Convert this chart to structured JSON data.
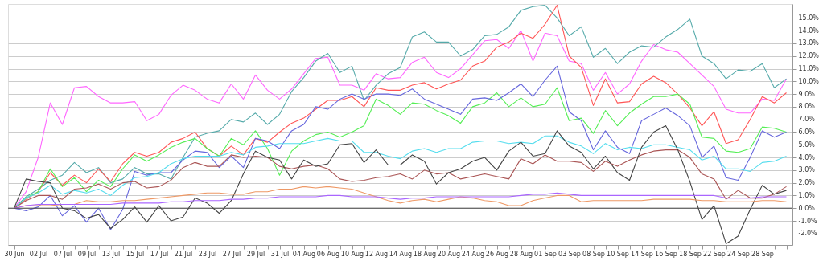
{
  "chart_data": {
    "type": "line",
    "categories": [
      "30 Jun",
      null,
      "02 Jul",
      null,
      "07 Jul",
      null,
      "09 Jul",
      null,
      "13 Jul",
      null,
      "15 Jul",
      null,
      "17 Jul",
      null,
      "21 Jul",
      null,
      "23 Jul",
      null,
      "27 Jul",
      null,
      "29 Jul",
      null,
      "31 Jul",
      null,
      "04 Aug",
      null,
      "06 Aug",
      null,
      "10 Aug",
      null,
      "12 Aug",
      null,
      "14 Aug",
      null,
      "18 Aug",
      null,
      "20 Aug",
      null,
      "24 Aug",
      null,
      "26 Aug",
      null,
      "28 Aug",
      null,
      "01 Sep",
      null,
      "03 Sep",
      null,
      "08 Sep",
      null,
      "10 Sep",
      null,
      "14 Sep",
      null,
      "16 Sep",
      null,
      "18 Sep",
      null,
      "22 Sep",
      null,
      "24 Sep",
      null,
      "28 Sep",
      null,
      null
    ],
    "series": [
      {
        "color": "#ff66ff",
        "values": [
          0,
          1.3,
          4.0,
          8.3,
          6.6,
          9.5,
          9.6,
          8.8,
          8.3,
          8.3,
          8.4,
          6.9,
          7.4,
          8.9,
          9.7,
          9.3,
          8.6,
          8.3,
          9.8,
          8.6,
          10.5,
          9.3,
          8.6,
          9.4,
          10.6,
          11.8,
          11.9,
          9.7,
          9.7,
          9.3,
          10.6,
          10.2,
          10.3,
          11.5,
          11.9,
          10.7,
          10.3,
          11.0,
          12.1,
          13.2,
          13.3,
          12.6,
          14.0,
          11.6,
          13.8,
          13.6,
          11.6,
          11.4,
          9.3,
          10.7,
          9.0,
          9.8,
          11.6,
          12.9,
          12.5,
          12.3,
          11.4,
          10.5,
          9.6,
          7.8,
          7.5,
          7.5,
          8.6,
          8.5,
          10.2
        ]
      },
      {
        "color": "#55aaaa",
        "values": [
          0,
          0.9,
          1.5,
          2.2,
          2.6,
          3.6,
          2.8,
          3.2,
          2.0,
          2.3,
          3.2,
          2.7,
          2.7,
          2.3,
          4.0,
          5.6,
          5.9,
          6.1,
          7.0,
          6.8,
          7.5,
          6.6,
          7.4,
          9.2,
          10.3,
          11.6,
          12.2,
          10.7,
          11.2,
          8.5,
          9.7,
          10.6,
          11.1,
          13.5,
          13.9,
          13.1,
          13.1,
          12.0,
          12.5,
          13.6,
          13.7,
          14.3,
          15.6,
          15.9,
          16.0,
          15.0,
          13.6,
          14.3,
          11.9,
          12.6,
          11.4,
          12.3,
          12.8,
          12.7,
          13.5,
          14.1,
          14.9,
          12.0,
          11.4,
          10.2,
          10.9,
          10.8,
          11.4,
          9.5,
          10.2
        ]
      },
      {
        "color": "#ff5555",
        "values": [
          0,
          0.7,
          1.3,
          2.8,
          1.8,
          2.6,
          2.0,
          3.1,
          2.1,
          3.5,
          4.4,
          4.1,
          4.4,
          5.2,
          5.5,
          6.0,
          4.7,
          4.1,
          4.9,
          4.2,
          5.5,
          5.2,
          6.0,
          6.7,
          7.1,
          7.8,
          8.5,
          8.5,
          8.8,
          8.0,
          9.5,
          9.3,
          9.3,
          9.7,
          9.9,
          9.4,
          9.8,
          10.1,
          11.2,
          11.6,
          12.7,
          13.1,
          13.8,
          13.4,
          14.5,
          16.0,
          12.0,
          11.1,
          8.1,
          10.2,
          8.3,
          8.4,
          9.8,
          10.4,
          9.9,
          9.0,
          7.9,
          6.5,
          7.6,
          5.1,
          5.4,
          7.0,
          8.8,
          8.3,
          9.1
        ]
      },
      {
        "color": "#55ee55",
        "values": [
          0,
          0.8,
          1.3,
          3.1,
          1.7,
          2.4,
          1.3,
          2.2,
          1.7,
          3.1,
          4.2,
          3.7,
          4.2,
          4.8,
          5.2,
          5.5,
          4.7,
          4.1,
          5.5,
          5.0,
          6.1,
          4.7,
          2.6,
          4.5,
          5.3,
          5.8,
          6.0,
          5.6,
          6.0,
          6.5,
          8.6,
          8.1,
          7.4,
          8.3,
          8.2,
          7.7,
          7.3,
          6.7,
          8.0,
          8.3,
          9.1,
          8.0,
          8.7,
          8.0,
          8.2,
          9.5,
          6.9,
          7.1,
          5.9,
          7.7,
          6.5,
          7.5,
          8.2,
          8.8,
          8.8,
          9.0,
          8.2,
          5.6,
          5.5,
          4.5,
          4.4,
          4.7,
          6.4,
          6.3,
          6.0
        ]
      },
      {
        "color": "#6666dd",
        "values": [
          0,
          -0.2,
          0.1,
          1.0,
          -0.6,
          0.2,
          -1.1,
          0.0,
          -1.7,
          -0.1,
          2.9,
          2.6,
          2.8,
          2.8,
          3.8,
          4.5,
          4.4,
          3.2,
          4.1,
          3.2,
          5.5,
          5.3,
          4.7,
          6.1,
          6.6,
          8.0,
          7.8,
          8.6,
          9.0,
          8.6,
          9.0,
          9.0,
          8.9,
          9.4,
          8.6,
          8.2,
          7.8,
          7.4,
          8.6,
          8.7,
          8.5,
          9.1,
          9.8,
          8.8,
          10.1,
          11.2,
          7.6,
          6.9,
          4.6,
          6.1,
          4.8,
          4.3,
          6.9,
          7.4,
          7.9,
          7.3,
          6.5,
          4.0,
          4.9,
          2.4,
          2.2,
          4.0,
          6.1,
          5.6,
          6.0
        ]
      },
      {
        "color": "#55ddee",
        "values": [
          0,
          0.8,
          1.2,
          1.8,
          1.1,
          1.4,
          1.2,
          1.5,
          1.0,
          1.8,
          2.4,
          2.5,
          2.8,
          3.5,
          3.9,
          4.1,
          4.1,
          4.1,
          4.4,
          4.2,
          4.8,
          4.9,
          5.1,
          5.1,
          5.1,
          5.3,
          5.5,
          5.3,
          5.3,
          4.4,
          4.4,
          4.1,
          3.9,
          4.5,
          4.7,
          4.4,
          4.7,
          4.7,
          5.2,
          5.3,
          5.3,
          5.1,
          5.2,
          5.1,
          5.7,
          5.7,
          5.2,
          4.9,
          4.3,
          5.1,
          4.6,
          4.8,
          4.7,
          5.0,
          5.0,
          4.8,
          4.6,
          3.8,
          4.1,
          3.1,
          3.1,
          2.9,
          3.6,
          3.7,
          4.1
        ]
      },
      {
        "color": "#aa5555",
        "values": [
          0,
          0.6,
          1.0,
          1.0,
          0.7,
          1.5,
          1.6,
          1.9,
          1.5,
          2.0,
          2.1,
          1.6,
          1.7,
          2.2,
          3.2,
          3.6,
          3.3,
          3.3,
          4.2,
          4.0,
          4.1,
          4.0,
          3.3,
          3.1,
          3.3,
          3.4,
          3.1,
          2.3,
          2.1,
          2.2,
          2.4,
          2.5,
          2.7,
          2.3,
          3.0,
          2.7,
          2.8,
          2.3,
          2.5,
          2.7,
          2.5,
          2.3,
          3.9,
          3.5,
          4.2,
          3.7,
          3.7,
          3.6,
          2.9,
          3.7,
          3.3,
          3.8,
          4.2,
          4.5,
          4.6,
          4.6,
          4.0,
          2.7,
          2.3,
          0.7,
          1.4,
          0.8,
          0.8,
          1.1,
          1.7
        ]
      },
      {
        "color": "#444444",
        "values": [
          0,
          2.3,
          2.1,
          2.0,
          0.0,
          -0.2,
          -0.8,
          -0.5,
          -1.6,
          -0.9,
          0.1,
          -1.1,
          0.2,
          -1.0,
          -0.7,
          0.8,
          0.4,
          -0.4,
          0.6,
          2.7,
          4.5,
          4.0,
          3.8,
          2.3,
          3.8,
          3.3,
          3.5,
          5.0,
          5.1,
          3.6,
          4.6,
          3.4,
          3.4,
          4.2,
          3.7,
          1.9,
          2.8,
          3.1,
          3.7,
          4.0,
          3.0,
          4.5,
          5.2,
          4.1,
          4.3,
          6.1,
          4.9,
          4.4,
          3.1,
          4.1,
          2.8,
          2.2,
          4.8,
          6.0,
          6.5,
          4.6,
          2.1,
          -0.9,
          0.2,
          -2.8,
          -2.2,
          -0.1,
          1.8,
          1.1,
          1.4
        ]
      },
      {
        "color": "#ee9966",
        "values": [
          0,
          0.2,
          0.2,
          0.2,
          0.3,
          0.3,
          0.6,
          0.5,
          0.5,
          0.6,
          0.6,
          0.7,
          0.8,
          0.9,
          1.0,
          1.1,
          1.2,
          1.2,
          1.1,
          1.1,
          1.3,
          1.3,
          1.5,
          1.5,
          1.7,
          1.6,
          1.7,
          1.6,
          1.5,
          1.2,
          0.9,
          0.6,
          0.4,
          0.6,
          0.7,
          0.5,
          0.7,
          0.9,
          0.8,
          0.6,
          0.5,
          0.2,
          0.2,
          0.6,
          0.8,
          1.0,
          1.0,
          0.5,
          0.6,
          0.6,
          0.6,
          0.6,
          0.6,
          0.7,
          0.7,
          0.7,
          0.7,
          0.6,
          0.6,
          0.5,
          0.5,
          0.5,
          0.6,
          0.6,
          0.5
        ]
      },
      {
        "color": "#aa66ff",
        "values": [
          0,
          0.2,
          0.3,
          0.3,
          0.3,
          0.3,
          0.3,
          0.3,
          0.3,
          0.4,
          0.4,
          0.4,
          0.4,
          0.5,
          0.5,
          0.6,
          0.6,
          0.6,
          0.7,
          0.7,
          0.8,
          0.8,
          0.9,
          0.9,
          0.9,
          0.9,
          1.0,
          1.0,
          0.9,
          0.9,
          0.9,
          0.8,
          0.7,
          0.8,
          0.8,
          0.9,
          0.9,
          0.9,
          0.9,
          0.9,
          0.9,
          0.9,
          1.0,
          1.1,
          1.1,
          1.2,
          1.1,
          1.0,
          1.0,
          1.0,
          1.0,
          1.0,
          1.0,
          1.0,
          1.0,
          1.0,
          1.0,
          1.0,
          1.0,
          0.8,
          0.8,
          0.8,
          0.9,
          0.9,
          0.9
        ]
      }
    ],
    "ylim": [
      -2.9,
      16.1
    ],
    "yticks": [
      {
        "value": -2,
        "label": "-2.0%"
      },
      {
        "value": -1,
        "label": "-1.0%"
      },
      {
        "value": 0,
        "label": "0.0%"
      },
      {
        "value": 1,
        "label": "1.0%"
      },
      {
        "value": 2,
        "label": "2.0%"
      },
      {
        "value": 3,
        "label": "3.0%"
      },
      {
        "value": 4,
        "label": "4.0%"
      },
      {
        "value": 5,
        "label": "5.0%"
      },
      {
        "value": 6,
        "label": "6.0%"
      },
      {
        "value": 7,
        "label": "7.0%"
      },
      {
        "value": 8,
        "label": "8.0%"
      },
      {
        "value": 9,
        "label": "9.0%"
      },
      {
        "value": 10,
        "label": "10.0%"
      },
      {
        "value": 11,
        "label": "11.0%"
      },
      {
        "value": 12,
        "label": "12.0%"
      },
      {
        "value": 13,
        "label": "13.0%"
      },
      {
        "value": 14,
        "label": "14.0%"
      },
      {
        "value": 15,
        "label": "15.0%"
      }
    ],
    "ref_lines": [
      {
        "axis": "y",
        "value": 0,
        "color": "#444444"
      }
    ],
    "grid": "y",
    "legend": false,
    "marker": "none",
    "line_style": "solid"
  }
}
